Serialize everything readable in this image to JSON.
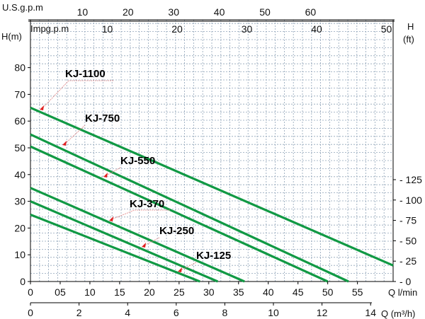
{
  "chart_data": {
    "type": "line",
    "x": {
      "label": "Q l/min",
      "range": [
        0,
        61
      ],
      "ticks": [
        0,
        5,
        10,
        15,
        20,
        25,
        30,
        35,
        40,
        45,
        50,
        55
      ],
      "tick_labels": [
        "0",
        "05",
        "10",
        "15",
        "20",
        "25",
        "30",
        "35",
        "40",
        "45",
        "50",
        "55"
      ]
    },
    "y_left": {
      "label": "H(m)",
      "range": [
        0,
        85
      ],
      "ticks": [
        0,
        10,
        20,
        30,
        40,
        50,
        60,
        70,
        80
      ],
      "tick_labels": [
        "0",
        "10",
        "20",
        "30",
        "40",
        "50",
        "60",
        "70",
        "80"
      ]
    },
    "y_right": {
      "label_line1": "H",
      "label_line2": "(ft)",
      "ticks": [
        0,
        25,
        50,
        75,
        100,
        125
      ],
      "tick_labels": [
        "0",
        "25",
        "50",
        "75",
        "100",
        "125"
      ]
    },
    "x_bottom2": {
      "label": "Q (m³/h)",
      "ticks": [
        0,
        2,
        4,
        6,
        8,
        10,
        12,
        14
      ],
      "tick_labels": [
        "0",
        "2",
        "4",
        "6",
        "8",
        "10",
        "12",
        "14"
      ]
    },
    "x_top_us": {
      "label": "U.S.g.p.m",
      "ticks": [
        10,
        20,
        30,
        40,
        50,
        60
      ],
      "tick_labels": [
        "10",
        "20",
        "30",
        "40",
        "50",
        "60"
      ]
    },
    "x_top_imp": {
      "label": "Impg.p.m",
      "ticks": [
        10,
        20,
        30,
        40,
        50
      ],
      "tick_labels": [
        "10",
        "20",
        "30",
        "40",
        "50"
      ]
    },
    "grid": true,
    "series": [
      {
        "name": "KJ-1100",
        "x": [
          0,
          61
        ],
        "y": [
          65,
          6
        ]
      },
      {
        "name": "KJ-750",
        "x": [
          0,
          53.5
        ],
        "y": [
          55,
          0
        ]
      },
      {
        "name": "KJ-550",
        "x": [
          0,
          50
        ],
        "y": [
          50.5,
          0
        ]
      },
      {
        "name": "KJ-370",
        "x": [
          0,
          36
        ],
        "y": [
          35,
          0
        ]
      },
      {
        "name": "KJ-250",
        "x": [
          0,
          31.5
        ],
        "y": [
          30,
          0
        ]
      },
      {
        "name": "KJ-125",
        "x": [
          0,
          28.5
        ],
        "y": [
          25,
          0
        ]
      }
    ],
    "colors": {
      "line": "#119944",
      "grid": "#8fa3b8",
      "marker": "#e02020",
      "leader": "#e08080"
    }
  }
}
